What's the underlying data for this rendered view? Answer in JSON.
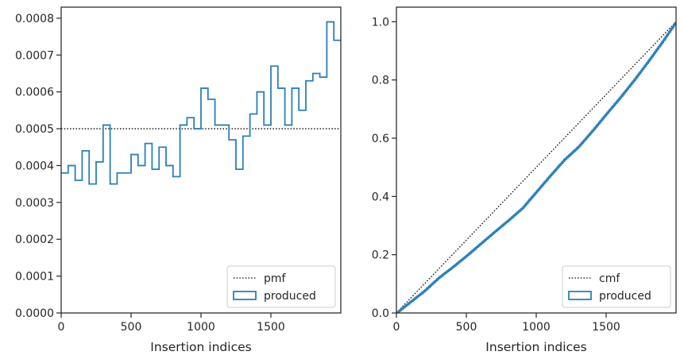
{
  "chart_data": [
    {
      "type": "line",
      "step": true,
      "xlabel": "Insertion indices",
      "ylabel": "",
      "xlim": [
        0,
        2000
      ],
      "ylim": [
        0,
        0.00083
      ],
      "xticks": [
        0,
        500,
        1000,
        1500
      ],
      "yticks": [
        0,
        0.0001,
        0.0002,
        0.0003,
        0.0004,
        0.0005,
        0.0006,
        0.0007,
        0.0008
      ],
      "ytick_labels": [
        "0.0000",
        "0.0001",
        "0.0002",
        "0.0003",
        "0.0004",
        "0.0005",
        "0.0006",
        "0.0007",
        "0.0008"
      ],
      "grid": false,
      "legend_position": "lower-right",
      "series": [
        {
          "name": "pmf",
          "style": "dotted",
          "color": "#000000",
          "x": [
            0,
            2000
          ],
          "y": [
            0.0005,
            0.0005
          ]
        },
        {
          "name": "produced",
          "style": "step-histogram",
          "color": "#2a7fba",
          "bin_edges": [
            0,
            50,
            100,
            150,
            200,
            250,
            300,
            350,
            400,
            450,
            500,
            550,
            600,
            650,
            700,
            750,
            800,
            850,
            900,
            950,
            1000,
            1050,
            1100,
            1150,
            1200,
            1250,
            1300,
            1350,
            1400,
            1450,
            1500,
            1550,
            1600,
            1650,
            1700,
            1750,
            1800,
            1850,
            1900,
            1950,
            2000
          ],
          "values": [
            0.00038,
            0.0004,
            0.00036,
            0.00044,
            0.00035,
            0.00041,
            0.00051,
            0.00035,
            0.00038,
            0.00038,
            0.00043,
            0.0004,
            0.00046,
            0.00039,
            0.00045,
            0.0004,
            0.00037,
            0.00051,
            0.00053,
            0.0005,
            0.00061,
            0.00058,
            0.00051,
            0.00051,
            0.00047,
            0.00039,
            0.00048,
            0.00054,
            0.0006,
            0.00051,
            0.00067,
            0.00061,
            0.00051,
            0.00061,
            0.00055,
            0.00063,
            0.00065,
            0.00064,
            0.00079,
            0.00074
          ]
        }
      ],
      "legend": [
        "pmf",
        "produced"
      ]
    },
    {
      "type": "line",
      "step": true,
      "xlabel": "Insertion indices",
      "ylabel": "",
      "xlim": [
        0,
        2000
      ],
      "ylim": [
        0,
        1.05
      ],
      "xticks": [
        0,
        500,
        1000,
        1500
      ],
      "yticks": [
        0,
        0.2,
        0.4,
        0.6,
        0.8,
        1.0
      ],
      "ytick_labels": [
        "0.0",
        "0.2",
        "0.4",
        "0.6",
        "0.8",
        "1.0"
      ],
      "grid": false,
      "legend_position": "lower-right",
      "series": [
        {
          "name": "cmf",
          "style": "dotted",
          "color": "#000000",
          "x": [
            0,
            2000
          ],
          "y": [
            0,
            1.0
          ]
        },
        {
          "name": "produced",
          "style": "step-cumulative",
          "color": "#2a7fba",
          "x": [
            0,
            100,
            200,
            300,
            400,
            500,
            600,
            700,
            800,
            900,
            1000,
            1100,
            1200,
            1300,
            1400,
            1500,
            1600,
            1700,
            1800,
            1900,
            2000
          ],
          "y": [
            0,
            0.038,
            0.076,
            0.12,
            0.157,
            0.196,
            0.237,
            0.278,
            0.318,
            0.36,
            0.416,
            0.472,
            0.526,
            0.57,
            0.625,
            0.683,
            0.74,
            0.8,
            0.864,
            0.93,
            1.0
          ]
        }
      ],
      "legend": [
        "cmf",
        "produced"
      ]
    }
  ]
}
